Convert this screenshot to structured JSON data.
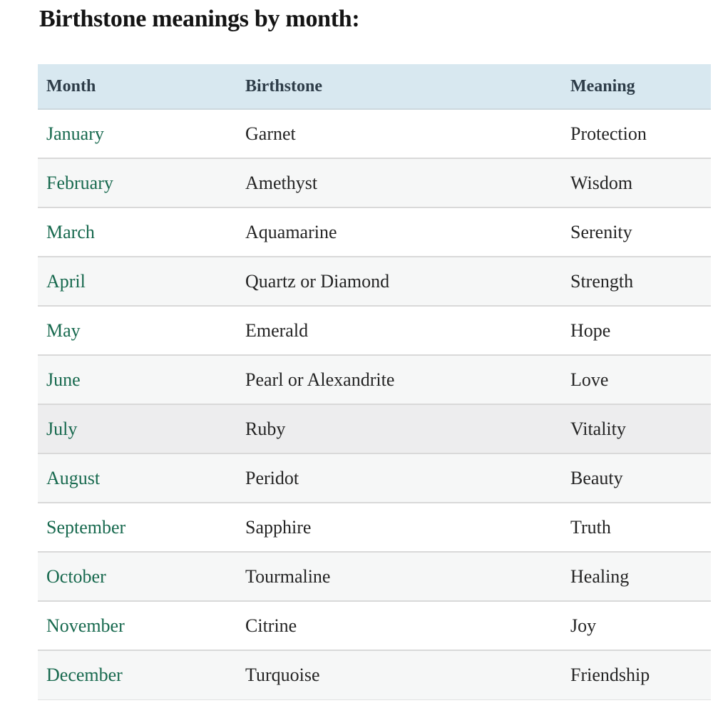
{
  "page": {
    "title": "Birthstone meanings by month:"
  },
  "theme": {
    "header_bg": "#d8e8f0",
    "header_text": "#2e3d49",
    "month_link": "#17694e",
    "body_text": "#242424",
    "title_text": "#141414",
    "row_alt_bg": "#f6f7f7",
    "row_highlight_bg": "#ededee",
    "divider": "#d9d9d9",
    "page_bg": "#ffffff"
  },
  "table": {
    "columns": [
      {
        "label": "Month"
      },
      {
        "label": "Birthstone"
      },
      {
        "label": "Meaning"
      }
    ],
    "rows": [
      {
        "month": "January",
        "birthstone": "Garnet",
        "meaning": "Protection"
      },
      {
        "month": "February",
        "birthstone": "Amethyst",
        "meaning": "Wisdom"
      },
      {
        "month": "March",
        "birthstone": "Aquamarine",
        "meaning": "Serenity"
      },
      {
        "month": "April",
        "birthstone": "Quartz or Diamond",
        "meaning": "Strength"
      },
      {
        "month": "May",
        "birthstone": "Emerald",
        "meaning": "Hope"
      },
      {
        "month": "June",
        "birthstone": "Pearl or Alexandrite",
        "meaning": "Love"
      },
      {
        "month": "July",
        "birthstone": "Ruby",
        "meaning": "Vitality"
      },
      {
        "month": "August",
        "birthstone": "Peridot",
        "meaning": "Beauty"
      },
      {
        "month": "September",
        "birthstone": "Sapphire",
        "meaning": "Truth"
      },
      {
        "month": "October",
        "birthstone": "Tourmaline",
        "meaning": "Healing"
      },
      {
        "month": "November",
        "birthstone": "Citrine",
        "meaning": "Joy"
      },
      {
        "month": "December",
        "birthstone": "Turquoise",
        "meaning": "Friendship"
      }
    ]
  }
}
